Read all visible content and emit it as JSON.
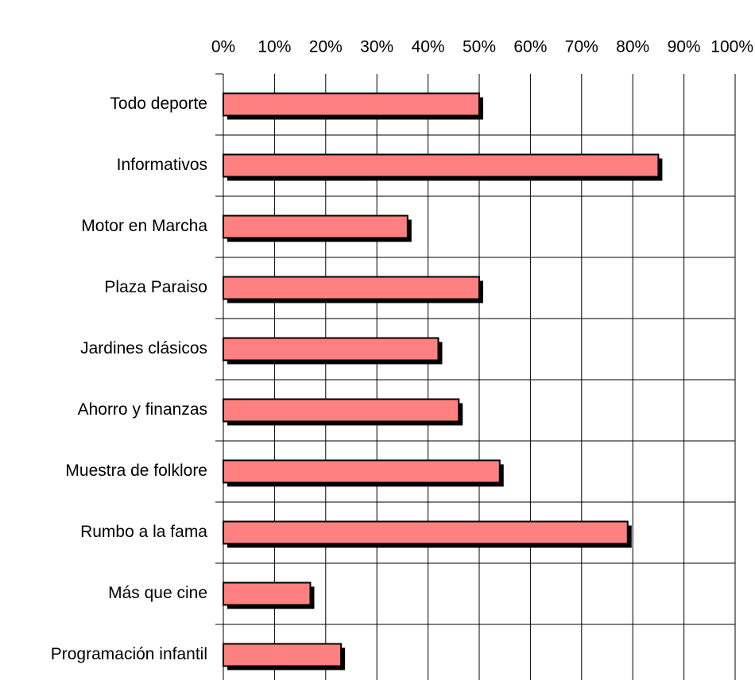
{
  "chart_data": {
    "type": "bar",
    "orientation": "horizontal",
    "categories": [
      "Todo deporte",
      "Informativos",
      "Motor en Marcha",
      "Plaza Paraiso",
      "Jardines clásicos",
      "Ahorro y finanzas",
      "Muestra de folklore",
      "Rumbo a la fama",
      "Más que cine",
      "Programación infantil"
    ],
    "values": [
      50,
      85,
      36,
      50,
      42,
      46,
      54,
      79,
      17,
      23
    ],
    "color": "#ff8080",
    "xlim": [
      0,
      100
    ],
    "xticks": [
      {
        "value": 0,
        "label": "0%"
      },
      {
        "value": 10,
        "label": "10%"
      },
      {
        "value": 20,
        "label": "20%"
      },
      {
        "value": 30,
        "label": "30%"
      },
      {
        "value": 40,
        "label": "40%"
      },
      {
        "value": 50,
        "label": "50%"
      },
      {
        "value": 60,
        "label": "60%"
      },
      {
        "value": 70,
        "label": "70%"
      },
      {
        "value": 80,
        "label": "80%"
      },
      {
        "value": 90,
        "label": "90%"
      },
      {
        "value": 100,
        "label": "100%"
      }
    ],
    "grid": true
  }
}
